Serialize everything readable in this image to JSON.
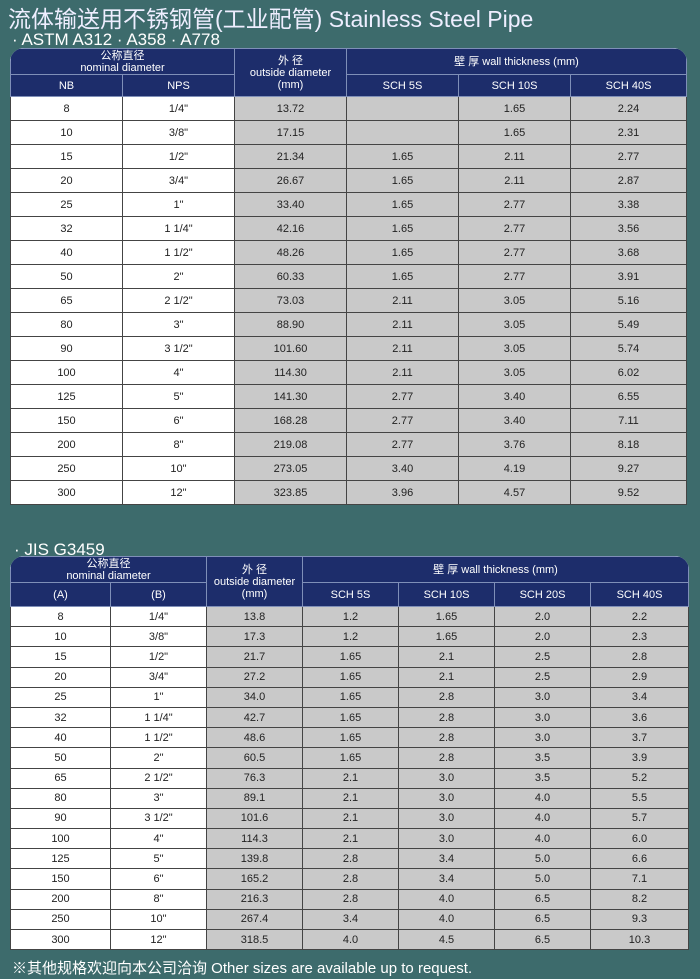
{
  "title": "流体输送用不锈钢管(工业配管) Stainless Steel Pipe",
  "table1": {
    "standard": "· ASTM A312   · A358   · A778",
    "nominal_cn": "公称直径",
    "nominal_en": "nominal diameter",
    "od_cn": "外 径",
    "od_en": "outside diameter",
    "od_unit": "(mm)",
    "wall": "壁 厚 wall thickness  (mm)",
    "columns": [
      "NB",
      "NPS",
      "SCH 5S",
      "SCH 10S",
      "SCH 40S"
    ],
    "rows": [
      [
        "8",
        "1/4\"",
        "13.72",
        "",
        "1.65",
        "2.24"
      ],
      [
        "10",
        "3/8\"",
        "17.15",
        "",
        "1.65",
        "2.31"
      ],
      [
        "15",
        "1/2\"",
        "21.34",
        "1.65",
        "2.11",
        "2.77"
      ],
      [
        "20",
        "3/4\"",
        "26.67",
        "1.65",
        "2.11",
        "2.87"
      ],
      [
        "25",
        "1\"",
        "33.40",
        "1.65",
        "2.77",
        "3.38"
      ],
      [
        "32",
        "1 1/4\"",
        "42.16",
        "1.65",
        "2.77",
        "3.56"
      ],
      [
        "40",
        "1 1/2\"",
        "48.26",
        "1.65",
        "2.77",
        "3.68"
      ],
      [
        "50",
        "2\"",
        "60.33",
        "1.65",
        "2.77",
        "3.91"
      ],
      [
        "65",
        "2 1/2\"",
        "73.03",
        "2.11",
        "3.05",
        "5.16"
      ],
      [
        "80",
        "3\"",
        "88.90",
        "2.11",
        "3.05",
        "5.49"
      ],
      [
        "90",
        "3 1/2\"",
        "101.60",
        "2.11",
        "3.05",
        "5.74"
      ],
      [
        "100",
        "4\"",
        "114.30",
        "2.11",
        "3.05",
        "6.02"
      ],
      [
        "125",
        "5\"",
        "141.30",
        "2.77",
        "3.40",
        "6.55"
      ],
      [
        "150",
        "6\"",
        "168.28",
        "2.77",
        "3.40",
        "7.11"
      ],
      [
        "200",
        "8\"",
        "219.08",
        "2.77",
        "3.76",
        "8.18"
      ],
      [
        "250",
        "10\"",
        "273.05",
        "3.40",
        "4.19",
        "9.27"
      ],
      [
        "300",
        "12\"",
        "323.85",
        "3.96",
        "4.57",
        "9.52"
      ]
    ]
  },
  "table2": {
    "standard": "· JIS  G3459",
    "nominal_cn": "公称直径",
    "nominal_en": "nominal diameter",
    "od_cn": "外 径",
    "od_en": "outside diameter",
    "od_unit": "(mm)",
    "wall": "壁 厚 wall thickness  (mm)",
    "columns": [
      "(A)",
      "(B)",
      "SCH 5S",
      "SCH 10S",
      "SCH 20S",
      "SCH 40S"
    ],
    "rows": [
      [
        "8",
        "1/4\"",
        "13.8",
        "1.2",
        "1.65",
        "2.0",
        "2.2"
      ],
      [
        "10",
        "3/8\"",
        "17.3",
        "1.2",
        "1.65",
        "2.0",
        "2.3"
      ],
      [
        "15",
        "1/2\"",
        "21.7",
        "1.65",
        "2.1",
        "2.5",
        "2.8"
      ],
      [
        "20",
        "3/4\"",
        "27.2",
        "1.65",
        "2.1",
        "2.5",
        "2.9"
      ],
      [
        "25",
        "1\"",
        "34.0",
        "1.65",
        "2.8",
        "3.0",
        "3.4"
      ],
      [
        "32",
        "1 1/4\"",
        "42.7",
        "1.65",
        "2.8",
        "3.0",
        "3.6"
      ],
      [
        "40",
        "1 1/2\"",
        "48.6",
        "1.65",
        "2.8",
        "3.0",
        "3.7"
      ],
      [
        "50",
        "2\"",
        "60.5",
        "1.65",
        "2.8",
        "3.5",
        "3.9"
      ],
      [
        "65",
        "2 1/2\"",
        "76.3",
        "2.1",
        "3.0",
        "3.5",
        "5.2"
      ],
      [
        "80",
        "3\"",
        "89.1",
        "2.1",
        "3.0",
        "4.0",
        "5.5"
      ],
      [
        "90",
        "3 1/2\"",
        "101.6",
        "2.1",
        "3.0",
        "4.0",
        "5.7"
      ],
      [
        "100",
        "4\"",
        "114.3",
        "2.1",
        "3.0",
        "4.0",
        "6.0"
      ],
      [
        "125",
        "5\"",
        "139.8",
        "2.8",
        "3.4",
        "5.0",
        "6.6"
      ],
      [
        "150",
        "6\"",
        "165.2",
        "2.8",
        "3.4",
        "5.0",
        "7.1"
      ],
      [
        "200",
        "8\"",
        "216.3",
        "2.8",
        "4.0",
        "6.5",
        "8.2"
      ],
      [
        "250",
        "10\"",
        "267.4",
        "3.4",
        "4.0",
        "6.5",
        "9.3"
      ],
      [
        "300",
        "12\"",
        "318.5",
        "4.0",
        "4.5",
        "6.5",
        "10.3"
      ]
    ]
  },
  "footer": "※其他规格欢迎向本公司洽询  Other sizes are available up to request."
}
